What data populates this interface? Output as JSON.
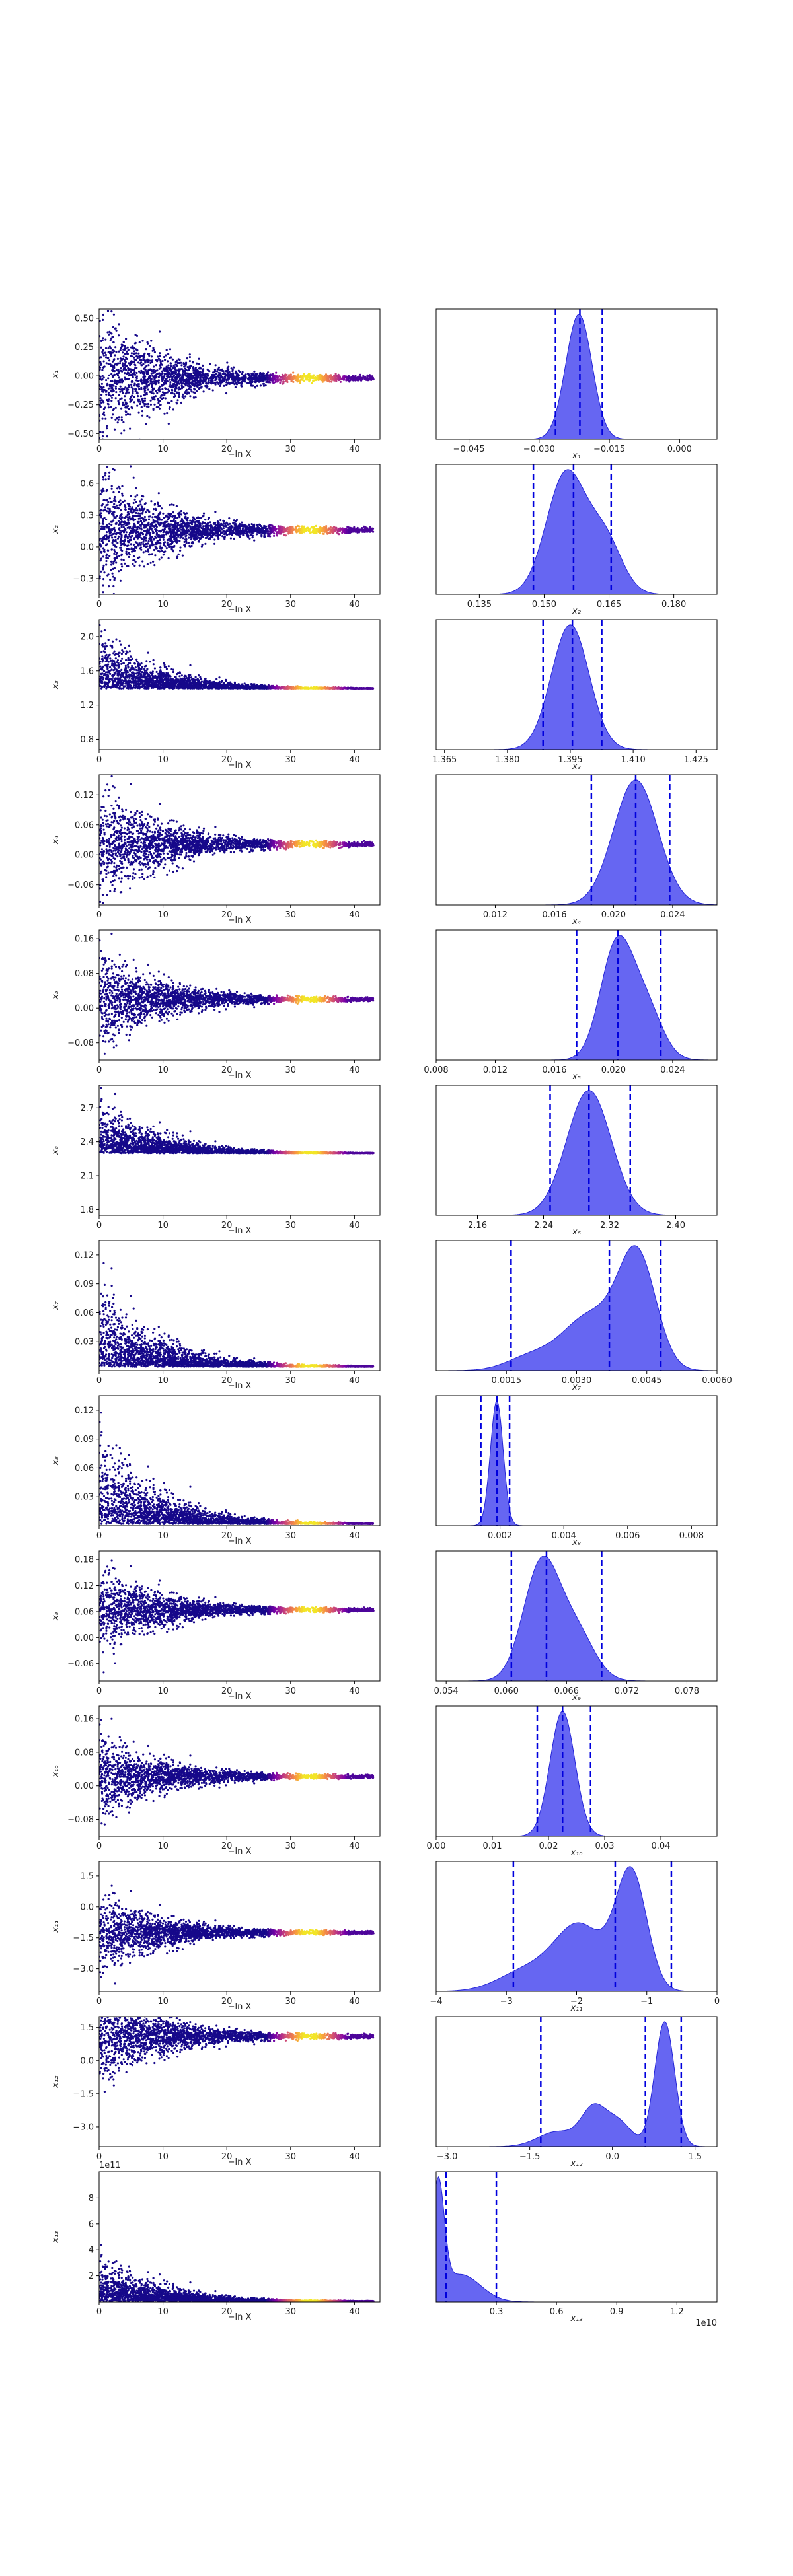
{
  "chart_data": {
    "type": "scatter",
    "x_axis_label_left": "−ln X",
    "x_range_left": [
      0,
      44
    ],
    "x_ticks_left": [
      "0",
      "10",
      "20",
      "30",
      "40"
    ],
    "colors": {
      "scatter_low": "#0d0887",
      "scatter_mid": "#cc4778",
      "scatter_high": "#f0f921",
      "kde_fill": "#4b4bf0",
      "kde_line": "#2323d6",
      "quantile_line": "#0000dd"
    },
    "rows": [
      {
        "param": "x1",
        "ylabel": "x₁",
        "trace": {
          "final": -0.02,
          "init_spread": 0.3,
          "y_range": [
            -0.55,
            0.58
          ],
          "y_ticks": [
            "0.50",
            "0.25",
            "0.00",
            "−0.25",
            "−0.50"
          ],
          "y_tick_values": [
            0.5,
            0.25,
            0,
            -0.25,
            -0.5
          ]
        },
        "posterior": {
          "x_range": [
            -0.052,
            0.008
          ],
          "x_ticks": [
            "−0.045",
            "−0.030",
            "−0.015",
            "0.000"
          ],
          "x_tick_values": [
            -0.045,
            -0.03,
            -0.015,
            0
          ],
          "peaks": [
            {
              "mu": -0.0215,
              "sigma": 0.0028,
              "w": 1.0
            }
          ],
          "quantiles": [
            -0.0265,
            -0.0213,
            -0.0165
          ],
          "xlabel": "x₁"
        }
      },
      {
        "param": "x2",
        "ylabel": "x₂",
        "trace": {
          "final": 0.158,
          "init_spread": 0.3,
          "y_range": [
            -0.45,
            0.78
          ],
          "y_ticks": [
            "0.6",
            "0.3",
            "0.0",
            "−0.3"
          ],
          "y_tick_values": [
            0.6,
            0.3,
            0,
            -0.3
          ]
        },
        "posterior": {
          "x_range": [
            0.125,
            0.19
          ],
          "x_ticks": [
            "0.135",
            "0.150",
            "0.165",
            "0.180"
          ],
          "x_tick_values": [
            0.135,
            0.15,
            0.165,
            0.18
          ],
          "peaks": [
            {
              "mu": 0.155,
              "sigma": 0.0045,
              "w": 1.0
            },
            {
              "mu": 0.164,
              "sigma": 0.004,
              "w": 0.45
            }
          ],
          "quantiles": [
            0.1475,
            0.1568,
            0.1655
          ],
          "xlabel": "x₂"
        }
      },
      {
        "param": "x3",
        "ylabel": "x₃",
        "trace": {
          "final": 1.395,
          "init_spread": 0.28,
          "y_range": [
            0.68,
            2.2
          ],
          "y_ticks": [
            "2.0",
            "1.6",
            "1.2",
            "0.8"
          ],
          "y_tick_values": [
            2.0,
            1.6,
            1.2,
            0.8
          ]
        },
        "posterior": {
          "x_range": [
            1.363,
            1.43
          ],
          "x_ticks": [
            "1.365",
            "1.380",
            "1.395",
            "1.410",
            "1.425"
          ],
          "x_tick_values": [
            1.365,
            1.38,
            1.395,
            1.41,
            1.425
          ],
          "peaks": [
            {
              "mu": 1.395,
              "sigma": 0.0045,
              "w": 1.0
            }
          ],
          "quantiles": [
            1.3885,
            1.3955,
            1.4025
          ],
          "xlabel": "x₃"
        }
      },
      {
        "param": "x4",
        "ylabel": "x₄",
        "trace": {
          "final": 0.021,
          "init_spread": 0.06,
          "y_range": [
            -0.1,
            0.16
          ],
          "y_ticks": [
            "0.12",
            "0.06",
            "0.00",
            "−0.06"
          ],
          "y_tick_values": [
            0.12,
            0.06,
            0,
            -0.06
          ]
        },
        "posterior": {
          "x_range": [
            0.008,
            0.027
          ],
          "x_ticks": [
            "0.012",
            "0.016",
            "0.020",
            "0.024"
          ],
          "x_tick_values": [
            0.012,
            0.016,
            0.02,
            0.024
          ],
          "peaks": [
            {
              "mu": 0.0215,
              "sigma": 0.0015,
              "w": 1.0
            }
          ],
          "quantiles": [
            0.0185,
            0.0215,
            0.0238
          ],
          "xlabel": "x₄"
        }
      },
      {
        "param": "x5",
        "ylabel": "x₅",
        "trace": {
          "final": 0.02,
          "init_spread": 0.055,
          "y_range": [
            -0.12,
            0.18
          ],
          "y_ticks": [
            "0.16",
            "0.08",
            "0.00",
            "−0.08"
          ],
          "y_tick_values": [
            0.16,
            0.08,
            0,
            -0.08
          ]
        },
        "posterior": {
          "x_range": [
            0.008,
            0.027
          ],
          "x_ticks": [
            "0.008",
            "0.012",
            "0.016",
            "0.020",
            "0.024"
          ],
          "x_tick_values": [
            0.008,
            0.012,
            0.016,
            0.02,
            0.024
          ],
          "peaks": [
            {
              "mu": 0.0202,
              "sigma": 0.0011,
              "w": 1.0
            },
            {
              "mu": 0.0222,
              "sigma": 0.0011,
              "w": 0.45
            }
          ],
          "quantiles": [
            0.0175,
            0.0203,
            0.0232
          ],
          "xlabel": "x₅"
        }
      },
      {
        "param": "x6",
        "ylabel": "x₆",
        "trace": {
          "final": 2.3,
          "init_spread": 0.2,
          "y_range": [
            1.75,
            2.9
          ],
          "y_ticks": [
            "2.7",
            "2.4",
            "2.1",
            "1.8"
          ],
          "y_tick_values": [
            2.7,
            2.4,
            2.1,
            1.8
          ]
        },
        "posterior": {
          "x_range": [
            2.11,
            2.45
          ],
          "x_ticks": [
            "2.16",
            "2.24",
            "2.32",
            "2.40"
          ],
          "x_tick_values": [
            2.16,
            2.24,
            2.32,
            2.4
          ],
          "peaks": [
            {
              "mu": 2.295,
              "sigma": 0.027,
              "w": 1.0
            }
          ],
          "quantiles": [
            2.248,
            2.295,
            2.345
          ],
          "xlabel": "x₆"
        }
      },
      {
        "param": "x7",
        "ylabel": "x₇",
        "trace": {
          "final": 0.004,
          "init_spread": 0.035,
          "y_range": [
            0.0,
            0.135
          ],
          "y_ticks": [
            "0.12",
            "0.09",
            "0.06",
            "0.03"
          ],
          "y_tick_values": [
            0.12,
            0.09,
            0.06,
            0.03
          ]
        },
        "posterior": {
          "x_range": [
            0.0,
            0.006
          ],
          "x_ticks": [
            "0.0015",
            "0.0030",
            "0.0045",
            "0.0060"
          ],
          "x_tick_values": [
            0.0015,
            0.003,
            0.0045,
            0.006
          ],
          "peaks": [
            {
              "mu": 0.0043,
              "sigma": 0.0004,
              "w": 1.0
            },
            {
              "mu": 0.0033,
              "sigma": 0.0006,
              "w": 0.5
            },
            {
              "mu": 0.002,
              "sigma": 0.0005,
              "w": 0.12
            }
          ],
          "quantiles": [
            0.0016,
            0.0037,
            0.0048
          ],
          "xlabel": "x₇"
        }
      },
      {
        "param": "x8",
        "ylabel": "x₈",
        "trace": {
          "final": 0.0018,
          "init_spread": 0.04,
          "y_range": [
            0.0,
            0.135
          ],
          "y_ticks": [
            "0.12",
            "0.09",
            "0.06",
            "0.03"
          ],
          "y_tick_values": [
            0.12,
            0.09,
            0.06,
            0.03
          ]
        },
        "posterior": {
          "x_range": [
            0.0,
            0.0088
          ],
          "x_ticks": [
            "0.002",
            "0.004",
            "0.006",
            "0.008"
          ],
          "x_tick_values": [
            0.002,
            0.004,
            0.006,
            0.008
          ],
          "peaks": [
            {
              "mu": 0.0019,
              "sigma": 0.0002,
              "w": 1.0
            }
          ],
          "quantiles": [
            0.0014,
            0.0019,
            0.0023
          ],
          "xlabel": "x₈"
        }
      },
      {
        "param": "x9",
        "ylabel": "x₉",
        "trace": {
          "final": 0.064,
          "init_spread": 0.05,
          "y_range": [
            -0.1,
            0.2
          ],
          "y_ticks": [
            "0.18",
            "0.12",
            "0.06",
            "0.00",
            "−0.06"
          ],
          "y_tick_values": [
            0.18,
            0.12,
            0.06,
            0,
            -0.06
          ]
        },
        "posterior": {
          "x_range": [
            0.053,
            0.081
          ],
          "x_ticks": [
            "0.054",
            "0.060",
            "0.066",
            "0.072",
            "0.078"
          ],
          "x_tick_values": [
            0.054,
            0.06,
            0.066,
            0.072,
            0.078
          ],
          "peaks": [
            {
              "mu": 0.0635,
              "sigma": 0.0018,
              "w": 1.0
            },
            {
              "mu": 0.067,
              "sigma": 0.0018,
              "w": 0.4
            }
          ],
          "quantiles": [
            0.0605,
            0.064,
            0.0695
          ],
          "xlabel": "x₉"
        }
      },
      {
        "param": "x10",
        "ylabel": "x₁₀",
        "trace": {
          "final": 0.022,
          "init_spread": 0.05,
          "y_range": [
            -0.12,
            0.19
          ],
          "y_ticks": [
            "0.16",
            "0.08",
            "0.00",
            "−0.08"
          ],
          "y_tick_values": [
            0.16,
            0.08,
            0,
            -0.08
          ]
        },
        "posterior": {
          "x_range": [
            0.0,
            0.05
          ],
          "x_ticks": [
            "0.00",
            "0.01",
            "0.02",
            "0.03",
            "0.04"
          ],
          "x_tick_values": [
            0,
            0.01,
            0.02,
            0.03,
            0.04
          ],
          "peaks": [
            {
              "mu": 0.0225,
              "sigma": 0.0022,
              "w": 1.0
            }
          ],
          "quantiles": [
            0.018,
            0.0225,
            0.0275
          ],
          "xlabel": "x₁₀"
        }
      },
      {
        "param": "x11",
        "ylabel": "x₁₁",
        "trace": {
          "final": -1.25,
          "init_spread": 1.0,
          "y_range": [
            -4.1,
            2.2
          ],
          "y_ticks": [
            "1.5",
            "0.0",
            "−1.5",
            "−3.0"
          ],
          "y_tick_values": [
            1.5,
            0,
            -1.5,
            -3.0
          ]
        },
        "posterior": {
          "x_range": [
            -4.0,
            0.0
          ],
          "x_ticks": [
            "−4",
            "−3",
            "−2",
            "−1",
            "0"
          ],
          "x_tick_values": [
            -4,
            -3,
            -2,
            -1,
            0
          ],
          "peaks": [
            {
              "mu": -1.22,
              "sigma": 0.22,
              "w": 1.0
            },
            {
              "mu": -1.95,
              "sigma": 0.35,
              "w": 0.55
            },
            {
              "mu": -2.7,
              "sigma": 0.4,
              "w": 0.18
            }
          ],
          "quantiles": [
            -2.9,
            -1.45,
            -0.65
          ],
          "xlabel": "x₁₁"
        }
      },
      {
        "param": "x12",
        "ylabel": "x₁₂",
        "trace": {
          "final": 1.1,
          "init_spread": 1.1,
          "y_range": [
            -3.9,
            2.0
          ],
          "y_ticks": [
            "1.5",
            "0.0",
            "−1.5",
            "−3.0"
          ],
          "y_tick_values": [
            1.5,
            0,
            -1.5,
            -3.0
          ]
        },
        "posterior": {
          "x_range": [
            -3.2,
            1.9
          ],
          "x_ticks": [
            "−3.0",
            "−1.5",
            "0.0",
            "1.5"
          ],
          "x_tick_values": [
            -3.0,
            -1.5,
            0,
            1.5
          ],
          "peaks": [
            {
              "mu": 0.95,
              "sigma": 0.18,
              "w": 1.0
            },
            {
              "mu": -0.35,
              "sigma": 0.22,
              "w": 0.28
            },
            {
              "mu": 0.1,
              "sigma": 0.25,
              "w": 0.2
            },
            {
              "mu": -1.0,
              "sigma": 0.35,
              "w": 0.12
            }
          ],
          "quantiles": [
            -1.3,
            0.6,
            1.25
          ],
          "xlabel": "x₁₂"
        }
      },
      {
        "param": "x13",
        "ylabel": "x₁₃",
        "trace": {
          "final": 0.05,
          "init_spread": 1.5,
          "y_range": [
            0.0,
            10.0
          ],
          "y_ticks": [
            "8",
            "6",
            "4",
            "2"
          ],
          "y_tick_values": [
            8,
            6,
            4,
            2
          ],
          "offset_label": "1e11"
        },
        "posterior": {
          "x_range": [
            0.0,
            1.4
          ],
          "x_ticks": [
            "0.3",
            "0.6",
            "0.9",
            "1.2"
          ],
          "x_tick_values": [
            0.3,
            0.6,
            0.9,
            1.2
          ],
          "peaks": [
            {
              "mu": 0.01,
              "sigma": 0.03,
              "w": 1.0
            },
            {
              "mu": 0.12,
              "sigma": 0.1,
              "w": 0.25
            }
          ],
          "quantiles": [
            0.05,
            0.3
          ],
          "xlabel": "x₁₃",
          "offset_label": "1e10"
        }
      }
    ]
  }
}
